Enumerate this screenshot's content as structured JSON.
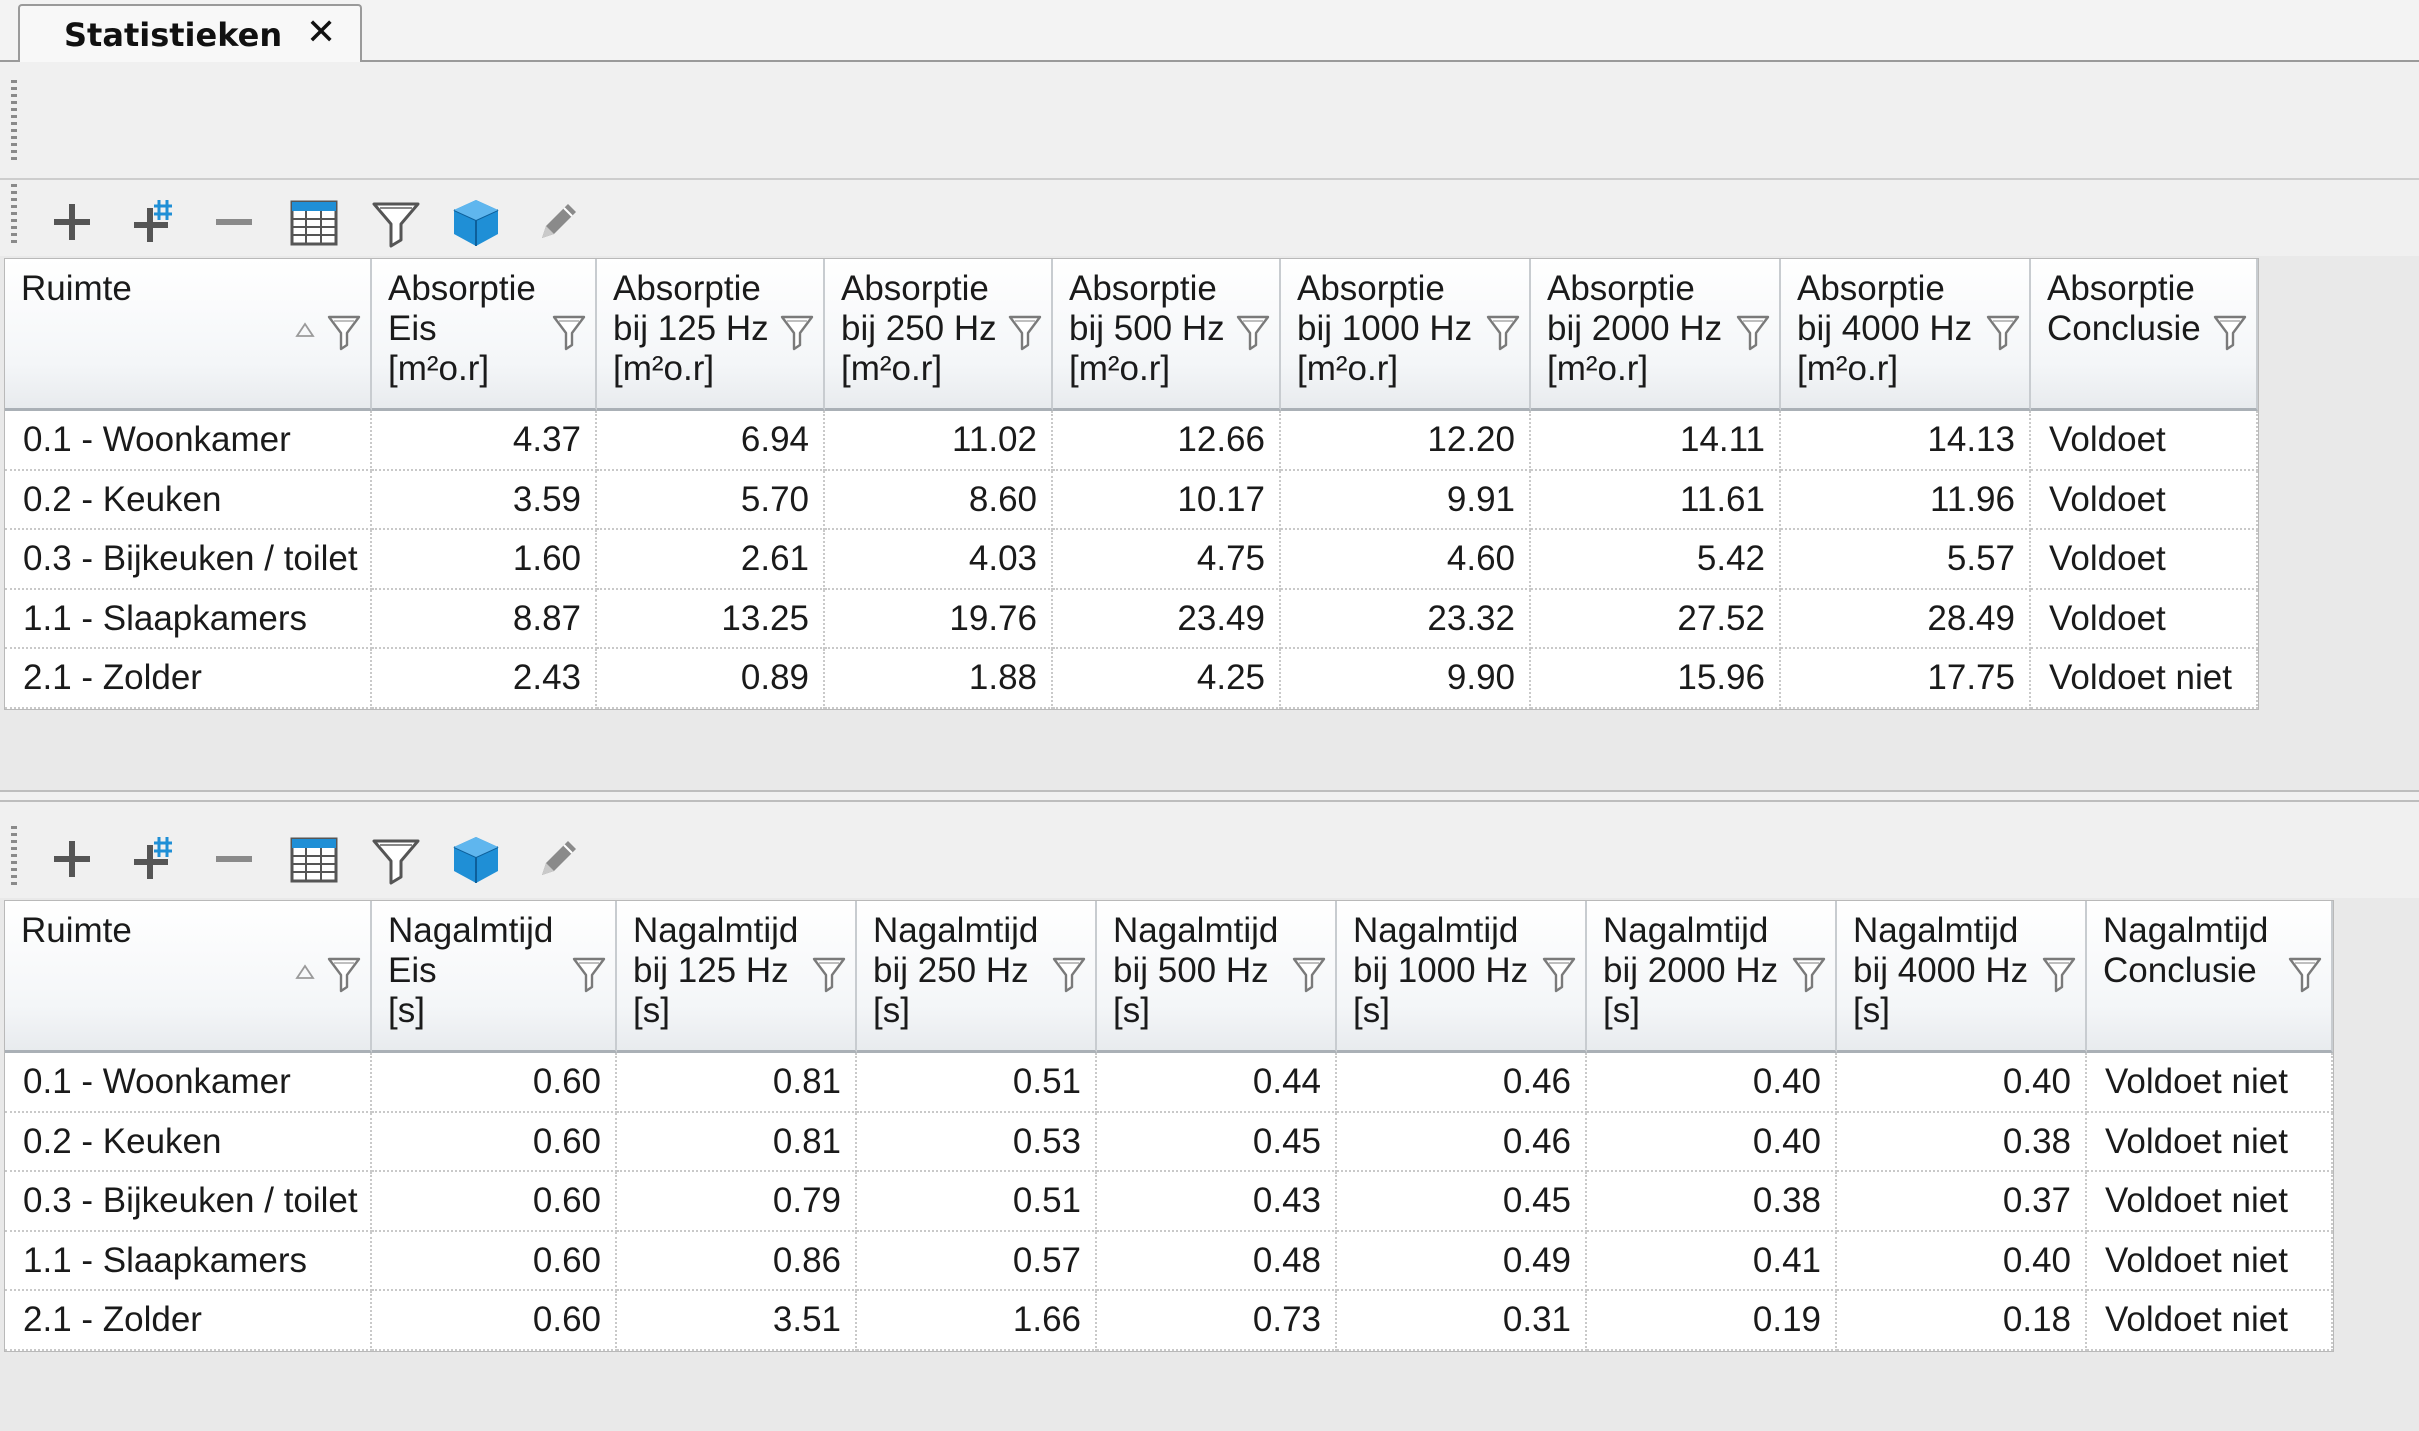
{
  "tab": {
    "title": "Statistieken",
    "close_symbol": "✕"
  },
  "toolbar_icons": [
    "add-icon",
    "add-multiple-icon",
    "remove-icon",
    "table-layout-icon",
    "filter-icon",
    "3d-cube-icon",
    "edit-pencil-icon"
  ],
  "colors": {
    "cube": "#1f8fd6",
    "grid_header_border": "#aab0b6",
    "icon_gray": "#555555"
  },
  "absorptie": {
    "headers": [
      "Ruimte",
      "Absorptie\nEis\n[m²o.r]",
      "Absorptie\nbij 125 Hz\n[m²o.r]",
      "Absorptie\nbij 250 Hz\n[m²o.r]",
      "Absorptie\nbij 500 Hz\n[m²o.r]",
      "Absorptie\nbij 1000 Hz\n[m²o.r]",
      "Absorptie\nbij 2000 Hz\n[m²o.r]",
      "Absorptie\nbij 4000 Hz\n[m²o.r]",
      "Absorptie\nConclusie"
    ],
    "rows": [
      [
        "0.1 - Woonkamer",
        "4.37",
        "6.94",
        "11.02",
        "12.66",
        "12.20",
        "14.11",
        "14.13",
        "Voldoet"
      ],
      [
        "0.2 - Keuken",
        "3.59",
        "5.70",
        "8.60",
        "10.17",
        "9.91",
        "11.61",
        "11.96",
        "Voldoet"
      ],
      [
        "0.3 - Bijkeuken / toilet",
        "1.60",
        "2.61",
        "4.03",
        "4.75",
        "4.60",
        "5.42",
        "5.57",
        "Voldoet"
      ],
      [
        "1.1 - Slaapkamers",
        "8.87",
        "13.25",
        "19.76",
        "23.49",
        "23.32",
        "27.52",
        "28.49",
        "Voldoet"
      ],
      [
        "2.1 - Zolder",
        "2.43",
        "0.89",
        "1.88",
        "4.25",
        "9.90",
        "15.96",
        "17.75",
        "Voldoet niet"
      ]
    ]
  },
  "nagalmtijd": {
    "headers": [
      "Ruimte",
      "Nagalmtijd\nEis\n[s]",
      "Nagalmtijd\nbij 125 Hz\n[s]",
      "Nagalmtijd\nbij 250 Hz\n[s]",
      "Nagalmtijd\nbij 500 Hz\n[s]",
      "Nagalmtijd\nbij 1000 Hz\n[s]",
      "Nagalmtijd\nbij 2000 Hz\n[s]",
      "Nagalmtijd\nbij 4000 Hz\n[s]",
      "Nagalmtijd\nConclusie"
    ],
    "rows": [
      [
        "0.1 - Woonkamer",
        "0.60",
        "0.81",
        "0.51",
        "0.44",
        "0.46",
        "0.40",
        "0.40",
        "Voldoet niet"
      ],
      [
        "0.2 - Keuken",
        "0.60",
        "0.81",
        "0.53",
        "0.45",
        "0.46",
        "0.40",
        "0.38",
        "Voldoet niet"
      ],
      [
        "0.3 - Bijkeuken / toilet",
        "0.60",
        "0.79",
        "0.51",
        "0.43",
        "0.45",
        "0.38",
        "0.37",
        "Voldoet niet"
      ],
      [
        "1.1 - Slaapkamers",
        "0.60",
        "0.86",
        "0.57",
        "0.48",
        "0.49",
        "0.41",
        "0.40",
        "Voldoet niet"
      ],
      [
        "2.1 - Zolder",
        "0.60",
        "3.51",
        "1.66",
        "0.73",
        "0.31",
        "0.19",
        "0.18",
        "Voldoet niet"
      ]
    ]
  }
}
